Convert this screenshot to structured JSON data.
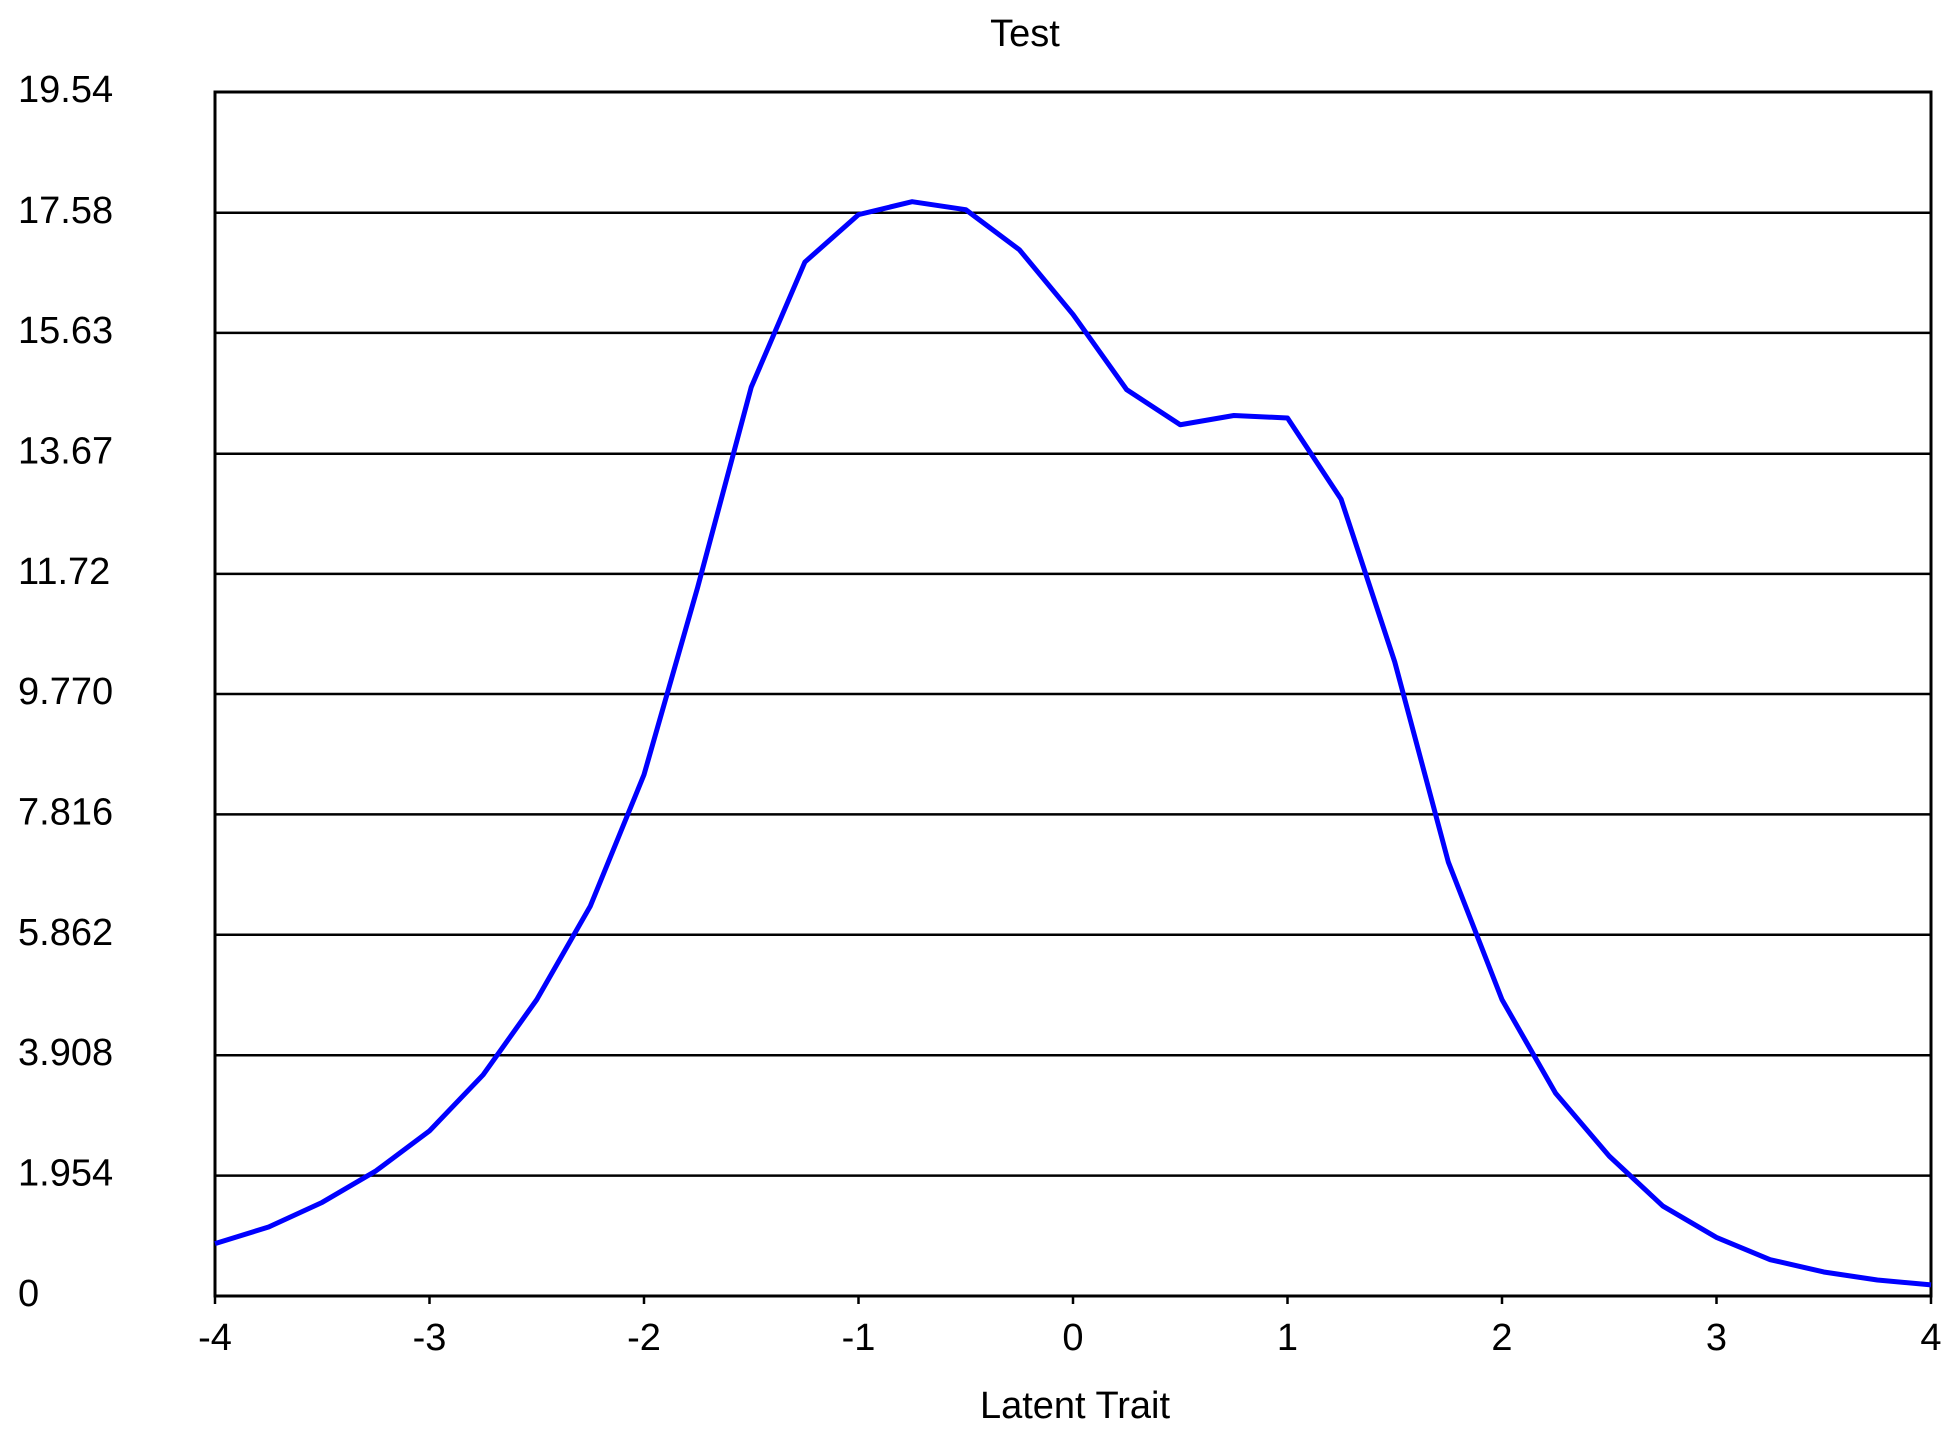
{
  "chart_data": {
    "type": "line",
    "title": "Test",
    "xlabel": "Latent Trait",
    "x": [
      -4,
      -3.75,
      -3.5,
      -3.25,
      -3,
      -2.75,
      -2.5,
      -2.25,
      -2,
      -1.75,
      -1.5,
      -1.25,
      -1,
      -0.75,
      -0.5,
      -0.25,
      0,
      0.25,
      0.5,
      0.75,
      1,
      1.25,
      1.5,
      1.75,
      2,
      2.25,
      2.5,
      2.75,
      3,
      3.25,
      3.5,
      3.75,
      4
    ],
    "series": [
      {
        "color": "#0000ff",
        "values": [
          0.85,
          1.12,
          1.52,
          2.03,
          2.68,
          3.59,
          4.81,
          6.33,
          8.46,
          11.5,
          14.75,
          16.78,
          17.55,
          17.76,
          17.63,
          16.98,
          15.93,
          14.71,
          14.14,
          14.29,
          14.25,
          12.93,
          10.29,
          7.04,
          4.81,
          3.29,
          2.27,
          1.46,
          0.95,
          0.59,
          0.39,
          0.26,
          0.18
        ]
      }
    ],
    "xlim": [
      -4,
      4
    ],
    "xticks": [
      -4,
      -3,
      -2,
      -1,
      0,
      1,
      2,
      3,
      4
    ],
    "ylim": [
      0,
      19.54
    ],
    "yticks": [
      0,
      1.954,
      3.908,
      5.862,
      7.816,
      {
        "value": 9.77,
        "label": "9.770"
      },
      11.72,
      13.67,
      15.63,
      17.58,
      19.54
    ],
    "grid": true
  }
}
